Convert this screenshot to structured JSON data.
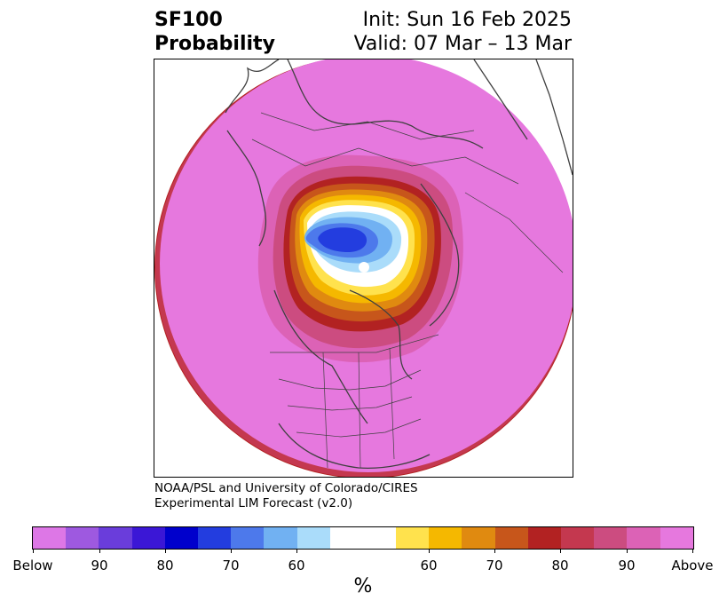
{
  "header": {
    "left_line1": "SF100",
    "left_line2": "Probability",
    "right_line1": "Init: Sun 16 Feb 2025",
    "right_line2": "Valid: 07 Mar – 13 Mar"
  },
  "credit": {
    "line1": "NOAA/PSL and University of Colorado/CIRES",
    "line2": "Experimental LIM Forecast (v2.0)"
  },
  "colorbar": {
    "colors": [
      "#dd77e6",
      "#9e59e0",
      "#6a3ddb",
      "#3b17d6",
      "#0000cc",
      "#233ddf",
      "#4d79eb",
      "#71b1f2",
      "#aadcfa",
      "#ffffff",
      "#ffe24d",
      "#f5b800",
      "#e08a10",
      "#c7561b",
      "#b22222",
      "#c4384f",
      "#cc4c80",
      "#dc62b6",
      "#e678de"
    ],
    "tick_labels": [
      "Below",
      "90",
      "80",
      "70",
      "60",
      "60",
      "70",
      "80",
      "90",
      "Above"
    ],
    "units": "%"
  },
  "map": {
    "fill_colors": {
      "outer": "#e678de",
      "ring1": "#dc62b6",
      "ring2": "#cc4c80",
      "ring3": "#b22222",
      "ring4": "#c7561b",
      "ring5": "#e08a10",
      "ring6": "#f5b800",
      "ring7": "#ffe24d",
      "neutral": "#ffffff",
      "blue1": "#aadcfa",
      "blue2": "#71b1f2",
      "blue3": "#4d79eb",
      "blue4": "#233ddf"
    },
    "coastline_color": "#404040"
  }
}
